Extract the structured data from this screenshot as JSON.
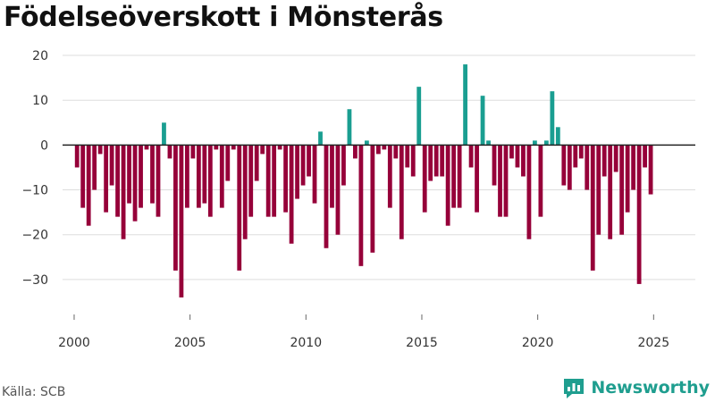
{
  "title": "Födelseöverskott i Mönsterås",
  "source": "Källa: SCB",
  "brand": {
    "name": "Newsworthy",
    "icon": "newsworthy-logo-icon"
  },
  "colors": {
    "positive": "#1a9e91",
    "negative": "#960039",
    "grid": "#dddddd",
    "baseline": "#222222"
  },
  "chart_data": {
    "type": "bar",
    "title": "Födelseöverskott i Mönsterås",
    "xlabel": "",
    "ylabel": "",
    "frequency": "quarterly",
    "start": "2000 Q1",
    "ylim": [
      -37,
      22
    ],
    "xlim": [
      1999.5,
      2026.8
    ],
    "yticks": [
      -30,
      -20,
      -10,
      0,
      10,
      20
    ],
    "ytick_labels": [
      "−30",
      "−20",
      "−10",
      "0",
      "10",
      "20"
    ],
    "xticks": [
      2000,
      2005,
      2010,
      2015,
      2020,
      2025
    ],
    "xtick_labels": [
      "2000",
      "2005",
      "2010",
      "2015",
      "2020",
      "2025"
    ],
    "grid": true,
    "values": [
      -5,
      -14,
      -18,
      -10,
      -2,
      -15,
      -9,
      -16,
      -21,
      -13,
      -17,
      -14,
      -1,
      -13,
      -16,
      5,
      -3,
      -28,
      -34,
      -14,
      -3,
      -14,
      -13,
      -16,
      -1,
      -14,
      -8,
      -1,
      -28,
      -21,
      -16,
      -8,
      -2,
      -16,
      -16,
      -1,
      -15,
      -22,
      -12,
      -9,
      -7,
      -13,
      3,
      -23,
      -14,
      -20,
      -9,
      8,
      -3,
      -27,
      1,
      -24,
      -2,
      -1,
      -14,
      -3,
      -21,
      -5,
      -7,
      13,
      -15,
      -8,
      -7,
      -7,
      -18,
      -14,
      -14,
      18,
      -5,
      -15,
      11,
      1,
      -9,
      -16,
      -16,
      -3,
      -5,
      -7,
      -21,
      1,
      -16,
      1,
      12,
      4,
      -9,
      -10,
      -5,
      -3,
      -10,
      -28,
      -20,
      -7,
      -21,
      -6,
      -20,
      -15,
      -10,
      -31,
      -5,
      -11
    ]
  }
}
